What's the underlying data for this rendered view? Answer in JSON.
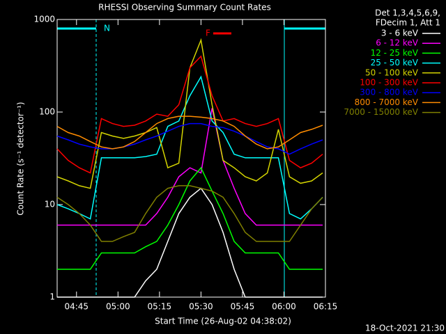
{
  "chart_data": {
    "type": "line",
    "title": "RHESSI Observing Summary Count Rates",
    "x_label": "Start Time (26-Aug-02 04:38:02)",
    "y_label": "Count Rate (s⁻¹ detector⁻¹)",
    "legend_header": [
      "Det 1,3,4,5,6,9,",
      "FDecim 1, Att 1"
    ],
    "annotations": [
      "N",
      "F"
    ],
    "timestamp": "18-Oct-2021 21:30",
    "log_y": true,
    "xlim": [
      278,
      375
    ],
    "ylim": [
      1,
      1000
    ],
    "xticks": [
      {
        "value": 285,
        "label": "04:45"
      },
      {
        "value": 300,
        "label": "05:00"
      },
      {
        "value": 315,
        "label": "05:15"
      },
      {
        "value": 330,
        "label": "05:30"
      },
      {
        "value": 345,
        "label": "05:45"
      },
      {
        "value": 360,
        "label": "06:00"
      },
      {
        "value": 375,
        "label": "06:15"
      }
    ],
    "yticks": [
      1,
      10,
      100,
      1000
    ],
    "x": [
      278,
      282,
      286,
      290,
      294,
      298,
      302,
      306,
      310,
      314,
      318,
      322,
      326,
      330,
      334,
      338,
      342,
      346,
      350,
      354,
      358,
      362,
      366,
      370,
      374
    ],
    "series": [
      {
        "name": "3 - 6 keV",
        "color": "#ffffff",
        "values": [
          1,
          1,
          1,
          1,
          1,
          1,
          1,
          1,
          1.5,
          2,
          4,
          8,
          12,
          15,
          10,
          5,
          2,
          1,
          1,
          1,
          1,
          1,
          1,
          1,
          1
        ]
      },
      {
        "name": "6 - 12 keV",
        "color": "#ff00ff",
        "values": [
          6,
          6,
          6,
          6,
          6,
          6,
          6,
          6,
          6,
          8,
          12,
          20,
          25,
          22,
          110,
          30,
          15,
          8,
          6,
          6,
          6,
          6,
          6,
          6,
          6
        ]
      },
      {
        "name": "12 - 25 keV",
        "color": "#00ff00",
        "values": [
          2,
          2,
          2,
          2,
          3,
          3,
          3,
          3,
          3.5,
          4,
          6,
          10,
          18,
          25,
          14,
          8,
          4,
          3,
          3,
          3,
          3,
          2,
          2,
          2,
          2
        ]
      },
      {
        "name": "25 - 50 keV",
        "color": "#00ffff",
        "values": [
          10,
          9,
          8,
          7,
          32,
          32,
          32,
          32,
          33,
          35,
          70,
          80,
          150,
          240,
          80,
          60,
          35,
          32,
          32,
          32,
          32,
          8,
          7,
          9,
          12
        ]
      },
      {
        "name": "50 - 100 keV",
        "color": "#d4d400",
        "values": [
          20,
          18,
          16,
          15,
          60,
          55,
          52,
          55,
          60,
          68,
          25,
          28,
          300,
          600,
          120,
          30,
          25,
          20,
          18,
          22,
          65,
          20,
          17,
          18,
          22
        ]
      },
      {
        "name": "100 - 300 keV",
        "color": "#ff0000",
        "values": [
          40,
          30,
          25,
          22,
          85,
          75,
          70,
          72,
          80,
          95,
          90,
          120,
          300,
          400,
          150,
          80,
          85,
          75,
          70,
          75,
          85,
          30,
          25,
          28,
          35
        ]
      },
      {
        "name": "300 - 800 keV",
        "color": "#0000ff",
        "values": [
          55,
          50,
          45,
          42,
          40,
          40,
          42,
          45,
          50,
          55,
          62,
          70,
          75,
          75,
          70,
          68,
          62,
          55,
          48,
          42,
          40,
          35,
          40,
          45,
          50
        ]
      },
      {
        "name": "800 - 7000 keV",
        "color": "#ff8c00",
        "values": [
          70,
          60,
          55,
          48,
          42,
          40,
          42,
          48,
          60,
          75,
          85,
          90,
          90,
          88,
          85,
          80,
          70,
          55,
          45,
          40,
          42,
          50,
          60,
          65,
          72
        ]
      },
      {
        "name": "7000 - 15000 keV",
        "color": "#808000",
        "values": [
          12,
          10,
          8,
          6,
          4,
          4,
          4.5,
          5,
          8,
          12,
          15,
          16,
          16,
          15,
          14,
          12,
          8,
          5,
          4,
          4,
          4,
          4,
          6,
          9,
          12
        ]
      }
    ]
  }
}
